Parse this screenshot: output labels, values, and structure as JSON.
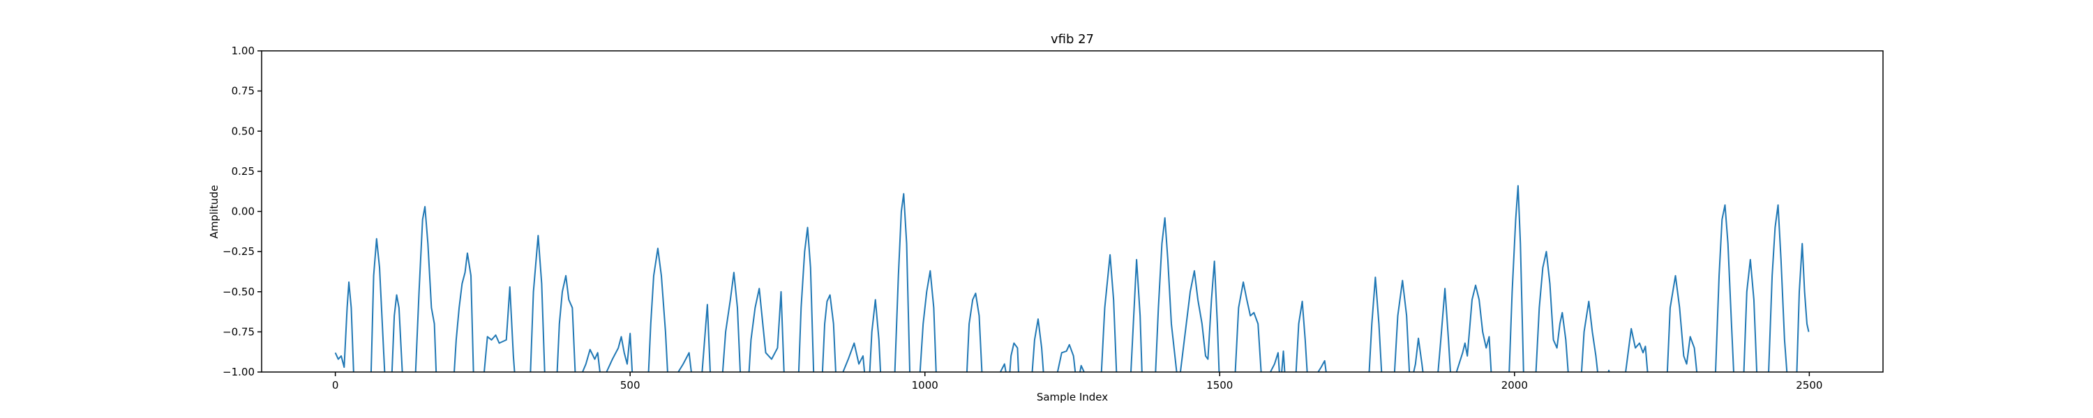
{
  "chart_data": {
    "type": "line",
    "title": "vfib 27",
    "xlabel": "Sample Index",
    "ylabel": "Amplitude",
    "xlim": [
      -125,
      2625
    ],
    "ylim": [
      -1,
      1
    ],
    "xticks": [
      0,
      500,
      1000,
      1500,
      2000,
      2500
    ],
    "yticks": [
      {
        "value": -1,
        "label": "−1.00"
      },
      {
        "value": -0.75,
        "label": "−0.75"
      },
      {
        "value": -0.5,
        "label": "−0.50"
      },
      {
        "value": -0.25,
        "label": "−0.25"
      },
      {
        "value": 0,
        "label": "0.00"
      },
      {
        "value": 0.25,
        "label": "0.25"
      },
      {
        "value": 0.5,
        "label": "0.50"
      },
      {
        "value": 0.75,
        "label": "0.75"
      },
      {
        "value": 1,
        "label": "1.00"
      }
    ],
    "color": "#1f77b4",
    "x": [
      0,
      5,
      10,
      15,
      20,
      23,
      27,
      32,
      60,
      65,
      70,
      75,
      85,
      95,
      100,
      104,
      108,
      115,
      135,
      142,
      148,
      152,
      157,
      163,
      168,
      172,
      200,
      205,
      210,
      215,
      220,
      224,
      230,
      235,
      250,
      258,
      265,
      272,
      278,
      290,
      296,
      302,
      306,
      330,
      336,
      344,
      350,
      356,
      375,
      380,
      385,
      391,
      396,
      402,
      408,
      425,
      432,
      440,
      445,
      452,
      460,
      470,
      480,
      485,
      490,
      495,
      500,
      505,
      530,
      535,
      540,
      547,
      553,
      560,
      565,
      590,
      600,
      607,
      620,
      631,
      637,
      655,
      662,
      670,
      676,
      682,
      688,
      700,
      705,
      712,
      719,
      725,
      730,
      740,
      750,
      756,
      762,
      785,
      790,
      796,
      801,
      806,
      812,
      825,
      830,
      834,
      839,
      845,
      850,
      870,
      880,
      888,
      895,
      900,
      905,
      910,
      916,
      922,
      926,
      948,
      955,
      960,
      964,
      969,
      975,
      990,
      997,
      1003,
      1009,
      1015,
      1020,
      1070,
      1075,
      1081,
      1086,
      1092,
      1098,
      1128,
      1135,
      1142,
      1146,
      1151,
      1157,
      1160,
      1180,
      1186,
      1192,
      1198,
      1203,
      1225,
      1232,
      1240,
      1245,
      1252,
      1258,
      1265,
      1270,
      1298,
      1305,
      1314,
      1320,
      1326,
      1348,
      1359,
      1365,
      1369,
      1390,
      1396,
      1402,
      1407,
      1412,
      1418,
      1424,
      1430,
      1440,
      1450,
      1457,
      1463,
      1470,
      1476,
      1480,
      1486,
      1491,
      1496,
      1500,
      1525,
      1532,
      1540,
      1546,
      1552,
      1558,
      1565,
      1572,
      1593,
      1599,
      1603,
      1608,
      1612,
      1628,
      1634,
      1640,
      1645,
      1650,
      1672,
      1678,
      1684,
      1752,
      1758,
      1764,
      1770,
      1776,
      1795,
      1802,
      1810,
      1817,
      1823,
      1832,
      1837,
      1843,
      1848,
      1868,
      1875,
      1882,
      1888,
      1893,
      1912,
      1916,
      1920,
      1928,
      1934,
      1940,
      1946,
      1952,
      1957,
      1962,
      1990,
      1996,
      2002,
      2006,
      2010,
      2016,
      2035,
      2042,
      2048,
      2054,
      2060,
      2066,
      2072,
      2077,
      2081,
      2087,
      2093,
      2112,
      2118,
      2126,
      2132,
      2138,
      2144,
      2156,
      2160,
      2164,
      2185,
      2192,
      2198,
      2205,
      2212,
      2218,
      2222,
      2228,
      2258,
      2264,
      2273,
      2280,
      2287,
      2292,
      2298,
      2305,
      2312,
      2340,
      2347,
      2352,
      2357,
      2362,
      2368,
      2373,
      2388,
      2394,
      2400,
      2406,
      2412,
      2430,
      2437,
      2442,
      2447,
      2452,
      2458,
      2464,
      2478,
      2483,
      2488,
      2492,
      2496,
      2499
    ],
    "values": [
      -0.88,
      -0.92,
      -0.9,
      -0.97,
      -0.6,
      -0.44,
      -0.6,
      -1.1,
      -1.1,
      -0.4,
      -0.17,
      -0.35,
      -1.1,
      -1.1,
      -0.65,
      -0.52,
      -0.6,
      -1.1,
      -1.1,
      -0.5,
      -0.05,
      0.03,
      -0.2,
      -0.6,
      -0.7,
      -1.1,
      -1.1,
      -0.8,
      -0.6,
      -0.45,
      -0.38,
      -0.26,
      -0.4,
      -1.1,
      -1.1,
      -0.78,
      -0.8,
      -0.77,
      -0.82,
      -0.8,
      -0.47,
      -0.9,
      -1.1,
      -1.1,
      -0.5,
      -0.15,
      -0.45,
      -1.1,
      -1.1,
      -0.7,
      -0.5,
      -0.4,
      -0.55,
      -0.6,
      -1.1,
      -0.95,
      -0.86,
      -0.92,
      -0.88,
      -1.1,
      -1.0,
      -0.92,
      -0.85,
      -0.78,
      -0.88,
      -0.95,
      -0.76,
      -1.1,
      -1.1,
      -0.7,
      -0.4,
      -0.23,
      -0.4,
      -0.75,
      -1.1,
      -0.95,
      -0.88,
      -1.1,
      -1.1,
      -0.58,
      -1.1,
      -1.1,
      -0.75,
      -0.55,
      -0.38,
      -0.6,
      -1.1,
      -1.1,
      -0.8,
      -0.6,
      -0.48,
      -0.7,
      -0.88,
      -0.92,
      -0.85,
      -0.5,
      -1.1,
      -1.1,
      -0.6,
      -0.25,
      -0.1,
      -0.35,
      -1.1,
      -1.1,
      -0.7,
      -0.56,
      -0.52,
      -0.7,
      -1.1,
      -0.92,
      -0.82,
      -0.95,
      -0.9,
      -1.1,
      -1.1,
      -0.75,
      -0.55,
      -0.8,
      -1.1,
      -1.1,
      -0.4,
      0.0,
      0.11,
      -0.2,
      -1.1,
      -1.1,
      -0.7,
      -0.5,
      -0.37,
      -0.6,
      -1.1,
      -1.1,
      -0.7,
      -0.55,
      -0.51,
      -0.65,
      -1.1,
      -1.0,
      -0.95,
      -1.1,
      -0.9,
      -0.82,
      -0.85,
      -1.1,
      -1.1,
      -0.8,
      -0.67,
      -0.85,
      -1.1,
      -1.0,
      -0.88,
      -0.87,
      -0.83,
      -0.9,
      -1.1,
      -0.96,
      -1.0,
      -1.1,
      -0.6,
      -0.27,
      -0.55,
      -1.1,
      -1.1,
      -0.3,
      -0.65,
      -1.1,
      -1.1,
      -0.6,
      -0.2,
      -0.04,
      -0.3,
      -0.7,
      -0.9,
      -1.1,
      -0.8,
      -0.5,
      -0.37,
      -0.55,
      -0.7,
      -0.9,
      -0.92,
      -0.55,
      -0.31,
      -0.7,
      -1.1,
      -1.1,
      -0.6,
      -0.44,
      -0.55,
      -0.65,
      -0.63,
      -0.7,
      -1.1,
      -0.95,
      -0.88,
      -1.1,
      -0.87,
      -1.1,
      -1.1,
      -0.7,
      -0.56,
      -0.8,
      -1.1,
      -0.97,
      -0.93,
      -1.1,
      -1.1,
      -0.7,
      -0.41,
      -0.7,
      -1.1,
      -1.1,
      -0.65,
      -0.43,
      -0.65,
      -1.1,
      -0.95,
      -0.79,
      -0.95,
      -1.1,
      -1.1,
      -0.8,
      -0.48,
      -0.8,
      -1.1,
      -0.88,
      -0.82,
      -0.9,
      -0.55,
      -0.46,
      -0.55,
      -0.75,
      -0.85,
      -0.78,
      -1.1,
      -1.1,
      -0.5,
      -0.05,
      0.16,
      -0.2,
      -1.1,
      -1.1,
      -0.6,
      -0.35,
      -0.25,
      -0.45,
      -0.8,
      -0.85,
      -0.7,
      -0.63,
      -0.8,
      -1.1,
      -1.1,
      -0.75,
      -0.56,
      -0.75,
      -0.9,
      -1.1,
      -1.05,
      -0.99,
      -1.05,
      -1.1,
      -0.9,
      -0.73,
      -0.85,
      -0.82,
      -0.88,
      -0.84,
      -1.1,
      -1.1,
      -0.6,
      -0.4,
      -0.6,
      -0.9,
      -0.95,
      -0.78,
      -0.85,
      -1.1,
      -1.1,
      -0.4,
      -0.05,
      0.04,
      -0.2,
      -0.7,
      -1.1,
      -1.1,
      -0.5,
      -0.3,
      -0.55,
      -1.1,
      -1.1,
      -0.4,
      -0.1,
      0.04,
      -0.3,
      -0.8,
      -1.1,
      -1.1,
      -0.5,
      -0.2,
      -0.5,
      -0.7,
      -0.75
    ]
  }
}
